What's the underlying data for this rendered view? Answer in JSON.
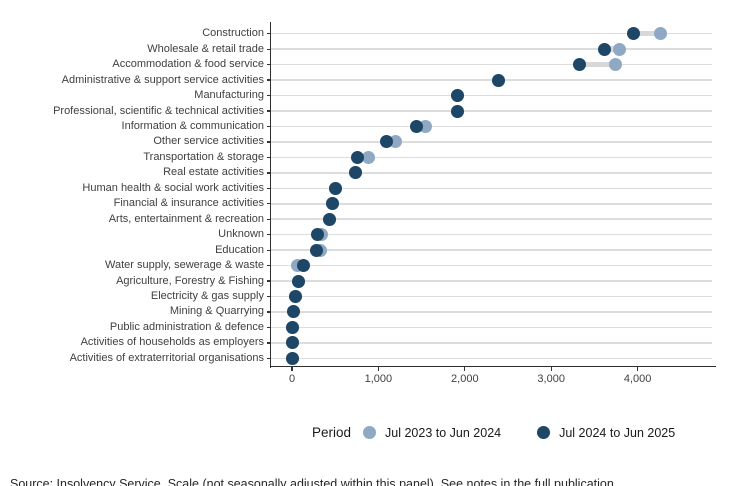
{
  "chart_data": {
    "type": "scatter",
    "subtype": "dumbbell-dot-plot",
    "title": "",
    "xlabel": "",
    "ylabel": "",
    "categories": [
      "Construction",
      "Wholesale & retail trade",
      "Accommodation & food service",
      "Administrative & support service activities",
      "Manufacturing",
      "Professional, scientific & technical activities",
      "Information & communication",
      "Other service activities",
      "Transportation & storage",
      "Real estate activities",
      "Human health & social work activities",
      "Financial & insurance activities",
      "Arts, entertainment & recreation",
      "Unknown",
      "Education",
      "Water supply, sewerage & waste",
      "Agriculture, Forestry & Fishing",
      "Electricity & gas supply",
      "Mining & Quarrying",
      "Public administration & defence",
      "Activities of households as employers",
      "Activities of extraterritorial organisations"
    ],
    "series": [
      {
        "name": "Jul 2023 to Jun 2024",
        "color": "#8fa9c4",
        "values": [
          4270,
          3790,
          3740,
          2390,
          1920,
          1920,
          1550,
          1200,
          880,
          740,
          500,
          470,
          430,
          340,
          330,
          60,
          80,
          45,
          15,
          10,
          5,
          0
        ]
      },
      {
        "name": "Jul 2024 to Jun 2025",
        "color": "#1d4667",
        "values": [
          3950,
          3620,
          3330,
          2390,
          1920,
          1920,
          1440,
          1090,
          760,
          740,
          500,
          470,
          430,
          290,
          280,
          130,
          80,
          45,
          15,
          10,
          5,
          0
        ]
      }
    ],
    "x_ticks": [
      {
        "label": "0",
        "value": 0
      },
      {
        "label": "1,000",
        "value": 1000
      },
      {
        "label": "2,000",
        "value": 2000
      },
      {
        "label": "3,000",
        "value": 3000
      },
      {
        "label": "4,000",
        "value": 4000
      }
    ],
    "xlim": [
      -250,
      4880
    ],
    "grid": "horizontal-only",
    "legend": {
      "title": "Period",
      "position": "bottom"
    },
    "colors": {
      "connector": "#d8d8d8",
      "gridline": "#dcdcdc",
      "axis": "#2f2f2f",
      "tick_text": "#404040"
    }
  },
  "footer": {
    "caption": "Source: Insolvency Service. Scale (not seasonally adjusted within this panel). See notes in the full publication"
  }
}
